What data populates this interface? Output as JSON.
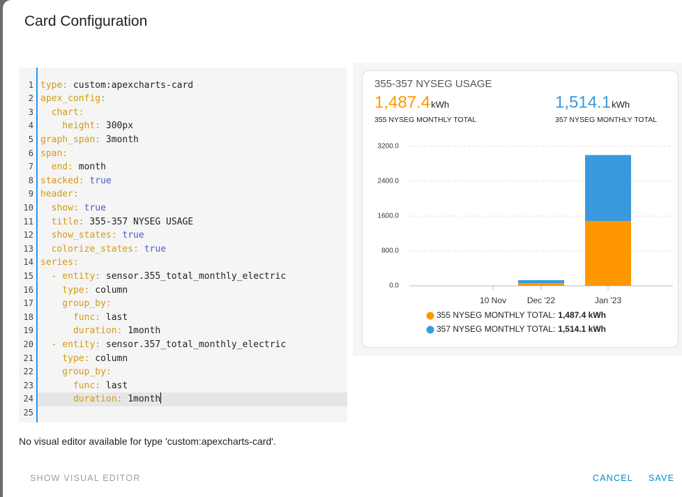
{
  "dialog": {
    "title": "Card Configuration",
    "message": "No visual editor available for type 'custom:apexcharts-card'.",
    "buttons": {
      "left": "SHOW VISUAL EDITOR",
      "cancel": "CANCEL",
      "save": "SAVE"
    }
  },
  "editor": {
    "key_color": "#d39a14",
    "bool_color": "#4f5bc4",
    "lines": [
      {
        "number": 1,
        "key": "type:",
        "value": "custom:apexcharts-card"
      },
      {
        "number": 2,
        "key": "apex_config:"
      },
      {
        "number": 3,
        "key": "  chart:"
      },
      {
        "number": 4,
        "key": "    height:",
        "value": "300px"
      },
      {
        "number": 5,
        "key": "graph_span:",
        "value": "3month"
      },
      {
        "number": 6,
        "key": "span:"
      },
      {
        "number": 7,
        "key": "  end:",
        "value": "month"
      },
      {
        "number": 8,
        "key": "stacked:",
        "value": "true",
        "bool": true
      },
      {
        "number": 9,
        "key": "header:"
      },
      {
        "number": 10,
        "key": "  show:",
        "value": "true",
        "bool": true
      },
      {
        "number": 11,
        "key": "  title:",
        "value": "355-357 NYSEG USAGE"
      },
      {
        "number": 12,
        "key": "  show_states:",
        "value": "true",
        "bool": true
      },
      {
        "number": 13,
        "key": "  colorize_states:",
        "value": "true",
        "bool": true
      },
      {
        "number": 14,
        "key": "series:"
      },
      {
        "number": 15,
        "key": "  - entity:",
        "value": "sensor.355_total_monthly_electric"
      },
      {
        "number": 16,
        "key": "    type:",
        "value": "column"
      },
      {
        "number": 17,
        "key": "    group_by:"
      },
      {
        "number": 18,
        "key": "      func:",
        "value": "last"
      },
      {
        "number": 19,
        "key": "      duration:",
        "value": "1month"
      },
      {
        "number": 20,
        "key": "  - entity:",
        "value": "sensor.357_total_monthly_electric"
      },
      {
        "number": 21,
        "key": "    type:",
        "value": "column"
      },
      {
        "number": 22,
        "key": "    group_by:"
      },
      {
        "number": 23,
        "key": "      func:",
        "value": "last"
      },
      {
        "number": 24,
        "key": "      duration:",
        "value": "1month",
        "highlighted": true
      },
      {
        "number": 25
      }
    ]
  },
  "chart_data": {
    "type": "bar",
    "stacked": true,
    "title": "355-357 NYSEG USAGE",
    "categories": [
      "10 Nov",
      "Dec '22",
      "Jan '23"
    ],
    "series": [
      {
        "name": "355 NYSEG MONTHLY TOTAL",
        "legend_name": "355 NYSEG MONTHLY TOTAL:",
        "color": "#ff9800",
        "values": [
          null,
          60,
          1487.4
        ],
        "state": "1,487.4",
        "unit": "kWh",
        "legend_value": "1,487.4 kWh"
      },
      {
        "name": "357 NYSEG MONTHLY TOTAL",
        "legend_name": "357 NYSEG MONTHLY TOTAL:",
        "color": "#3a99dd",
        "values": [
          null,
          70,
          1514.1
        ],
        "state": "1,514.1",
        "unit": "kWh",
        "legend_value": "1,514.1 kWh"
      }
    ],
    "ylim": [
      0,
      3200
    ],
    "yticks": [
      {
        "value": 0,
        "label": "0.0"
      },
      {
        "value": 800,
        "label": "800.0"
      },
      {
        "value": 1600,
        "label": "1600.0"
      },
      {
        "value": 2400,
        "label": "2400.0"
      },
      {
        "value": 3200,
        "label": "3200.0"
      }
    ],
    "grid": true
  }
}
